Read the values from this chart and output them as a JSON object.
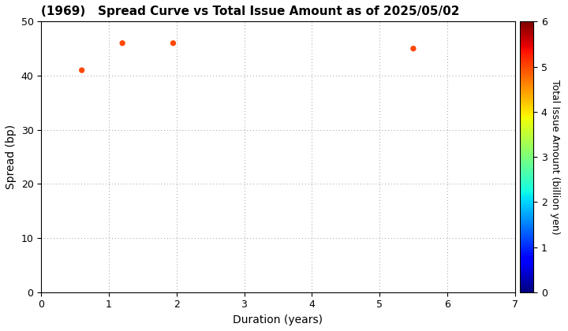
{
  "title": "(1969)   Spread Curve vs Total Issue Amount as of 2025/05/02",
  "xlabel": "Duration (years)",
  "ylabel": "Spread (bp)",
  "colorbar_label": "Total Issue Amount (billion yen)",
  "points": [
    {
      "duration": 0.6,
      "spread": 41,
      "amount": 5.0
    },
    {
      "duration": 1.2,
      "spread": 46,
      "amount": 5.0
    },
    {
      "duration": 1.95,
      "spread": 46,
      "amount": 5.0
    },
    {
      "duration": 5.5,
      "spread": 45,
      "amount": 5.0
    }
  ],
  "xlim": [
    0,
    7
  ],
  "ylim": [
    0,
    50
  ],
  "xticks": [
    0,
    1,
    2,
    3,
    4,
    5,
    6,
    7
  ],
  "yticks": [
    0,
    10,
    20,
    30,
    40,
    50
  ],
  "colorbar_min": 0,
  "colorbar_max": 6,
  "colorbar_ticks": [
    0,
    1,
    2,
    3,
    4,
    5,
    6
  ],
  "cmap": "jet",
  "marker_size": 18,
  "background_color": "#ffffff",
  "grid_color": "#999999",
  "title_fontsize": 11,
  "label_fontsize": 10,
  "tick_fontsize": 9,
  "colorbar_label_fontsize": 9
}
